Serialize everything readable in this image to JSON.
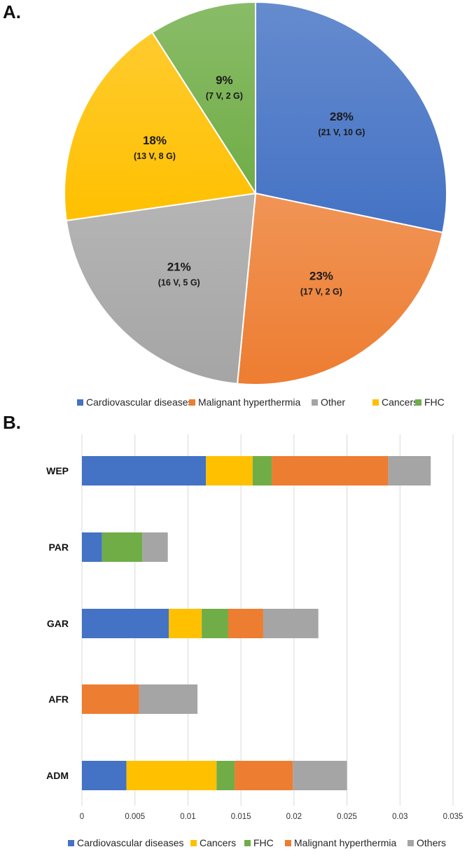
{
  "panel_a_label": "A.",
  "panel_b_label": "B.",
  "chart_data": [
    {
      "type": "pie",
      "slices": [
        {
          "name": "Cardiovascular diseases",
          "value": 28,
          "label": "28%",
          "sublabel": "(21 V, 10 G)",
          "color": "#4472C4"
        },
        {
          "name": "Malignant hyperthermia",
          "value": 23,
          "label": "23%",
          "sublabel": "(17 V, 2 G)",
          "color": "#ED7D31"
        },
        {
          "name": "Other",
          "value": 21,
          "label": "21%",
          "sublabel": "(16 V, 5 G)",
          "color": "#A5A5A5"
        },
        {
          "name": "Cancers",
          "value": 18,
          "label": "18%",
          "sublabel": "(13 V, 8 G)",
          "color": "#FFC000"
        },
        {
          "name": "FHC",
          "value": 9,
          "label": "9%",
          "sublabel": "(7 V, 2 G)",
          "color": "#70AD47"
        }
      ],
      "legend": [
        "Cardiovascular diseases",
        "Malignant hyperthermia",
        "Other",
        "Cancers",
        "FHC"
      ],
      "legend_position": "bottom"
    },
    {
      "type": "bar",
      "orientation": "horizontal",
      "stacked": true,
      "categories": [
        "WEP",
        "PAR",
        "GAR",
        "AFR",
        "ADM"
      ],
      "series": [
        {
          "name": "Cardiovascular diseases",
          "color": "#4472C4",
          "values": [
            0.0117,
            0.0019,
            0.0082,
            0,
            0.0042
          ]
        },
        {
          "name": "Cancers",
          "color": "#FFC000",
          "values": [
            0.0044,
            0,
            0.0031,
            0,
            0.0085
          ]
        },
        {
          "name": "FHC",
          "color": "#70AD47",
          "values": [
            0.0018,
            0.0038,
            0.0025,
            0,
            0.0017
          ]
        },
        {
          "name": "Malignant hyperthermia",
          "color": "#ED7D31",
          "values": [
            0.011,
            0,
            0.0033,
            0.0054,
            0.0055
          ]
        },
        {
          "name": "Others",
          "color": "#A5A5A5",
          "values": [
            0.004,
            0.0024,
            0.0052,
            0.0055,
            0.0051
          ]
        }
      ],
      "xlim": [
        0,
        0.035
      ],
      "x_ticks": [
        "0",
        "0.005",
        "0.01",
        "0.015",
        "0.02",
        "0.025",
        "0.03",
        "0.035"
      ],
      "grid": true,
      "legend_position": "bottom"
    }
  ]
}
